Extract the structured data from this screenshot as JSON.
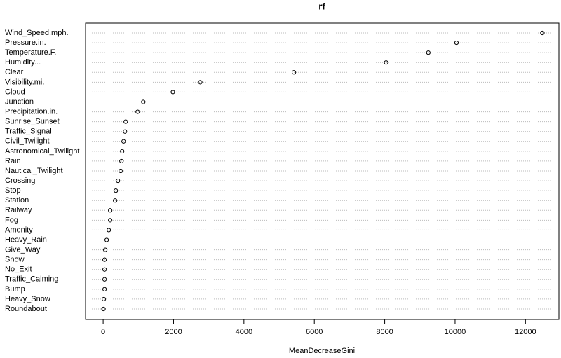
{
  "chart_data": {
    "type": "dot",
    "title": "rf",
    "x_label": "MeanDecreaseGini",
    "categories": [
      "Wind_Speed.mph.",
      "Pressure.in.",
      "Temperature.F.",
      "Humidity...",
      "Clear",
      "Visibility.mi.",
      "Cloud",
      "Junction",
      "Precipitation.in.",
      "Sunrise_Sunset",
      "Traffic_Signal",
      "Civil_Twilight",
      "Astronomical_Twilight",
      "Rain",
      "Nautical_Twilight",
      "Crossing",
      "Stop",
      "Station",
      "Railway",
      "Fog",
      "Amenity",
      "Heavy_Rain",
      "Give_Way",
      "Snow",
      "No_Exit",
      "Traffic_Calming",
      "Bump",
      "Heavy_Snow",
      "Roundabout"
    ],
    "values": [
      12480,
      10040,
      9240,
      8040,
      5420,
      2760,
      1980,
      1140,
      980,
      640,
      620,
      580,
      540,
      520,
      500,
      420,
      360,
      340,
      200,
      200,
      160,
      100,
      60,
      40,
      40,
      40,
      40,
      20,
      10
    ],
    "color": "#000000",
    "xlim": [
      -500,
      12950
    ],
    "xticks": [
      0,
      2000,
      4000,
      6000,
      8000,
      10000,
      12000
    ],
    "grid": true
  }
}
